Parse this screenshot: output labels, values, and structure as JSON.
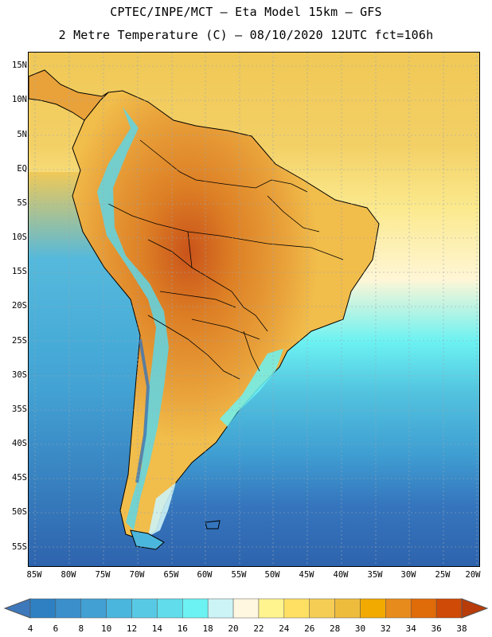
{
  "header": {
    "title_line1": "CPTEC/INPE/MCT –  Eta Model 15km – GFS",
    "title_line2": "2 Metre Temperature (C) – 08/10/2020 12UTC fct=106h"
  },
  "map": {
    "lat_labels": [
      "15N",
      "10N",
      "5N",
      "EQ",
      "5S",
      "10S",
      "15S",
      "20S",
      "25S",
      "30S",
      "35S",
      "40S",
      "45S",
      "50S",
      "55S"
    ],
    "lon_labels": [
      "85W",
      "80W",
      "75W",
      "70W",
      "65W",
      "60W",
      "55W",
      "50W",
      "45W",
      "40W",
      "35W",
      "30W",
      "25W",
      "20W"
    ],
    "ocean_color": "#2e6fb5",
    "land_color_warm": "#e8a83a",
    "land_color_hot": "#cf6b1e",
    "andes_color": "#5ed6e6",
    "border_color": "#000000",
    "grid_color": "#9aa6b2"
  },
  "legend": {
    "labels": [
      "4",
      "6",
      "8",
      "10",
      "12",
      "14",
      "16",
      "18",
      "20",
      "22",
      "24",
      "26",
      "28",
      "30",
      "32",
      "34",
      "36",
      "38"
    ],
    "colors": [
      "#3d78bb",
      "#2f80c2",
      "#3b8fcb",
      "#42a0d3",
      "#4bb6dd",
      "#58c9e4",
      "#61dcea",
      "#6cf2f2",
      "#ccf3f6",
      "#fff7e0",
      "#fff48e",
      "#ffe062",
      "#f5cd55",
      "#eebc3c",
      "#f2a900",
      "#e88b1d",
      "#e06b09",
      "#cf4a06",
      "#b83c0a"
    ]
  }
}
